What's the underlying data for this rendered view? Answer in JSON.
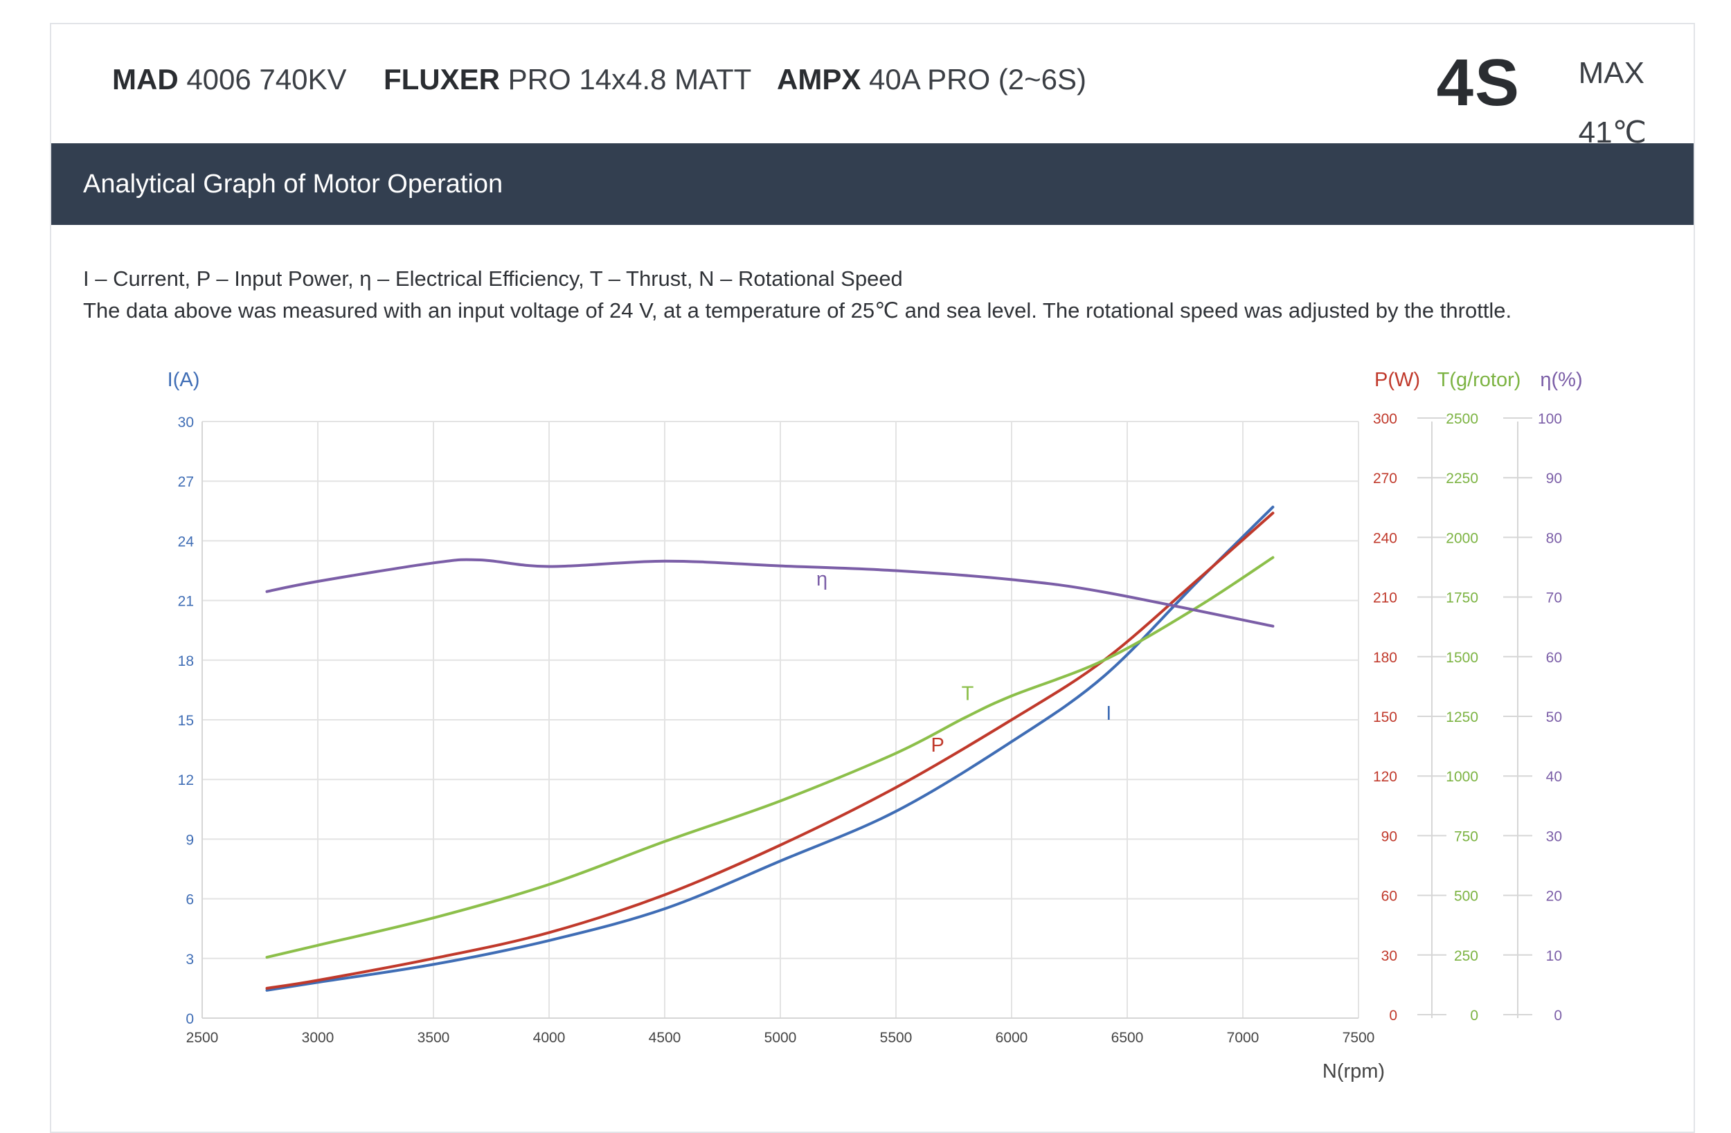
{
  "header": {
    "motor_brand": "MAD",
    "motor_model": "4006 740KV",
    "prop_brand": "FLUXER",
    "prop_model": "PRO 14x4.8 MATT",
    "esc_brand": "AMPX",
    "esc_model": "40A PRO (2~6S)",
    "cells": "4S",
    "max_label": "MAX",
    "max_temp": "41℃"
  },
  "section_title": "Analytical Graph of Motor Operation",
  "notes": {
    "line1": "I – Current, P – Input Power, η – Electrical Efficiency, T – Thrust,   N – Rotational Speed",
    "line2": "The data above was measured with an input voltage of 24 V, at a temperature of 25℃ and sea level. The rotational speed was adjusted by the throttle."
  },
  "chart_data": {
    "type": "line",
    "xlabel": "N(rpm)",
    "xlim": [
      2500,
      7500
    ],
    "xticks": [
      2500,
      3000,
      3500,
      4000,
      4500,
      5000,
      5500,
      6000,
      6500,
      7000,
      7500
    ],
    "axes": {
      "I": {
        "label": "I(A)",
        "lim": [
          0,
          30
        ],
        "ticks": [
          0,
          3,
          6,
          9,
          12,
          15,
          18,
          21,
          24,
          27,
          30
        ],
        "color": "#3f6db5"
      },
      "P": {
        "label": "P(W)",
        "lim": [
          0,
          300
        ],
        "ticks": [
          0,
          30,
          60,
          90,
          120,
          150,
          180,
          210,
          240,
          270,
          300
        ],
        "color": "#c0392b"
      },
      "T": {
        "label": "T(g/rotor)",
        "lim": [
          0,
          2500
        ],
        "ticks": [
          0,
          250,
          500,
          750,
          1000,
          1250,
          1500,
          1750,
          2000,
          2250,
          2500
        ],
        "color": "#7cb342"
      },
      "eta": {
        "label": "η(%)",
        "lim": [
          0,
          100
        ],
        "ticks": [
          0,
          10,
          20,
          30,
          40,
          50,
          60,
          70,
          80,
          90,
          100
        ],
        "color": "#7b5ea7"
      }
    },
    "series": [
      {
        "name": "I",
        "axis": "I",
        "color": "#3f6db5",
        "x": [
          2780,
          3000,
          3500,
          4000,
          4500,
          5000,
          5500,
          6000,
          6400,
          6800,
          7130
        ],
        "y": [
          1.4,
          1.8,
          2.7,
          3.9,
          5.5,
          7.9,
          10.4,
          13.9,
          17.2,
          21.9,
          25.7
        ]
      },
      {
        "name": "P",
        "axis": "P",
        "color": "#c0392b",
        "x": [
          2780,
          3000,
          3500,
          4000,
          4500,
          5000,
          5500,
          6000,
          6400,
          6800,
          7130
        ],
        "y": [
          15,
          19,
          30,
          43,
          62,
          87,
          116,
          150,
          180,
          220,
          254
        ]
      },
      {
        "name": "T",
        "axis": "T",
        "color": "#8cbf4a",
        "x": [
          2780,
          3000,
          3500,
          4000,
          4500,
          5000,
          5500,
          5800,
          6000,
          6400,
          6800,
          7130
        ],
        "y": [
          255,
          305,
          420,
          560,
          740,
          910,
          1110,
          1260,
          1350,
          1500,
          1720,
          1930
        ]
      },
      {
        "name": "η",
        "axis": "eta",
        "color": "#7b5ea7",
        "x": [
          2780,
          3000,
          3500,
          3700,
          4000,
          4500,
          5000,
          5500,
          6000,
          6400,
          7130
        ],
        "y": [
          71.5,
          73.2,
          76.3,
          76.8,
          75.7,
          76.6,
          75.8,
          75,
          73.5,
          71.4,
          65.7
        ]
      }
    ],
    "annotations": [
      {
        "text": "I",
        "series": "I",
        "x": 6420,
        "y": 15.0
      },
      {
        "text": "P",
        "series": "P",
        "x": 5680,
        "y": 134
      },
      {
        "text": "T",
        "series": "T",
        "x": 5810,
        "y": 1333
      },
      {
        "text": "η",
        "series": "η",
        "x": 5180,
        "y": 72.5
      }
    ],
    "grid": true
  }
}
